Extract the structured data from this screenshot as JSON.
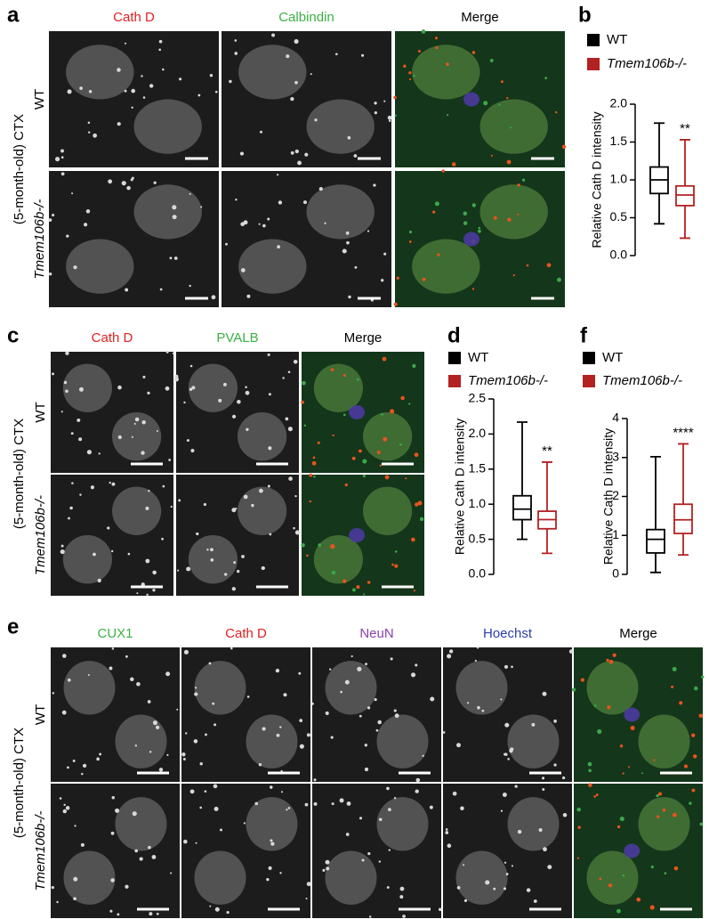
{
  "figure": {
    "panels": [
      {
        "label": "a",
        "columns": [
          "Cath D",
          "Calbindin",
          "Merge"
        ],
        "rows": [
          "WT",
          "Tmem106b-/-"
        ],
        "region": "(5-month-old) CTX"
      },
      {
        "label": "c",
        "columns": [
          "Cath D",
          "PVALB",
          "Merge"
        ],
        "rows": [
          "WT",
          "Tmem106b-/-"
        ],
        "region": "(5-month-old) CTX"
      },
      {
        "label": "e",
        "columns": [
          "CUX1",
          "Cath D",
          "NeuN",
          "Hoechst",
          "Merge"
        ],
        "rows": [
          "WT",
          "Tmem106b-/-"
        ],
        "region": "(5-month-old) CTX"
      }
    ]
  },
  "chart_data": [
    {
      "type": "box",
      "panel_label": "b",
      "y_label": "Relative Cath D intensity",
      "significance": "**",
      "ylim": [
        0,
        2.0
      ],
      "yticks": [
        {
          "value": 0,
          "label": "0.0"
        },
        {
          "value": 0.5,
          "label": "0.5"
        },
        {
          "value": 1.0,
          "label": "1.0"
        },
        {
          "value": 1.5,
          "label": "1.5"
        },
        {
          "value": 2.0,
          "label": "2.0"
        }
      ],
      "series": [
        {
          "name": "WT",
          "color": "#000000",
          "whisker_low": 0.42,
          "q1": 0.82,
          "median": 1.0,
          "q3": 1.17,
          "whisker_high": 1.75
        },
        {
          "name": "Tmem106b-/-",
          "color": "#b22222",
          "whisker_low": 0.23,
          "q1": 0.66,
          "median": 0.8,
          "q3": 0.92,
          "whisker_high": 1.53
        }
      ]
    },
    {
      "type": "box",
      "panel_label": "d",
      "y_label": "Relative Cath D intensity",
      "significance": "**",
      "ylim": [
        0,
        2.5
      ],
      "yticks": [
        {
          "value": 0,
          "label": "0.0"
        },
        {
          "value": 0.5,
          "label": "0.5"
        },
        {
          "value": 1.0,
          "label": "1.0"
        },
        {
          "value": 1.5,
          "label": "1.5"
        },
        {
          "value": 2.0,
          "label": "2.0"
        },
        {
          "value": 2.5,
          "label": "2.5"
        }
      ],
      "series": [
        {
          "name": "WT",
          "color": "#000000",
          "whisker_low": 0.5,
          "q1": 0.78,
          "median": 0.93,
          "q3": 1.12,
          "whisker_high": 2.17
        },
        {
          "name": "Tmem106b-/-",
          "color": "#b22222",
          "whisker_low": 0.3,
          "q1": 0.65,
          "median": 0.78,
          "q3": 0.9,
          "whisker_high": 1.6
        }
      ]
    },
    {
      "type": "box",
      "panel_label": "f",
      "y_label": "Relative Cath D intensity",
      "significance": "****",
      "ylim": [
        0,
        4
      ],
      "yticks": [
        0,
        1,
        2,
        3,
        4
      ],
      "series": [
        {
          "name": "WT",
          "color": "#000000",
          "whisker_low": 0.05,
          "q1": 0.55,
          "median": 0.9,
          "q3": 1.15,
          "whisker_high": 3.02
        },
        {
          "name": "Tmem106b-/-",
          "color": "#b22222",
          "whisker_low": 0.5,
          "q1": 1.05,
          "median": 1.4,
          "q3": 1.8,
          "whisker_high": 3.35
        }
      ]
    }
  ]
}
